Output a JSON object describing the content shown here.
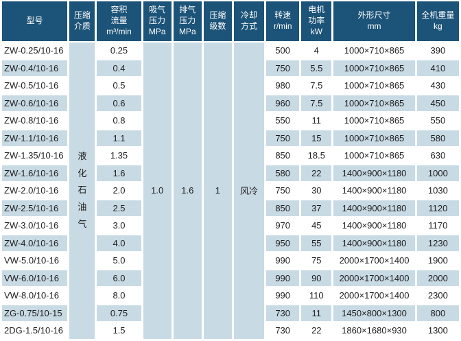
{
  "colors": {
    "header_bg": "#1c5378",
    "header_text": "#ffffff",
    "stripe_bg": "#c8dae4",
    "row_bg": "#ffffff",
    "body_text": "#1d1d1d"
  },
  "table": {
    "headers": [
      {
        "key": "model",
        "label": "型号"
      },
      {
        "key": "medium",
        "label": "压缩\n介质"
      },
      {
        "key": "flow",
        "label": "容积\n流量\nm³/min"
      },
      {
        "key": "suction_pressure",
        "label": "吸气\n压力\nMPa"
      },
      {
        "key": "discharge_pressure",
        "label": "排气\n压力\nMPa"
      },
      {
        "key": "stages",
        "label": "压缩\n级数"
      },
      {
        "key": "cooling",
        "label": "冷却\n方式"
      },
      {
        "key": "speed",
        "label": "转速\nr/min"
      },
      {
        "key": "motor_power",
        "label": "电机\n功率\nkW"
      },
      {
        "key": "dimensions",
        "label": "外形尺寸\nmm"
      },
      {
        "key": "weight",
        "label": "全机重量\nkg"
      }
    ],
    "merged_cells": {
      "medium": "液\n化\n石\n油\n气",
      "suction_pressure": "1.0",
      "discharge_pressure": "1.6",
      "stages": "1",
      "cooling": "风冷"
    },
    "rows": [
      {
        "model": "ZW-0.25/10-16",
        "flow": "0.25",
        "speed": "500",
        "power": "4",
        "dimensions": "1000×710×865",
        "weight": "390"
      },
      {
        "model": "ZW-0.4/10-16",
        "flow": "0.4",
        "speed": "750",
        "power": "5.5",
        "dimensions": "1000×710×865",
        "weight": "410"
      },
      {
        "model": "ZW-0.5/10-16",
        "flow": "0.5",
        "speed": "980",
        "power": "7.5",
        "dimensions": "1000×710×865",
        "weight": "430"
      },
      {
        "model": "ZW-0.6/10-16",
        "flow": "0.6",
        "speed": "960",
        "power": "7.5",
        "dimensions": "1000×710×865",
        "weight": "450"
      },
      {
        "model": "ZW-0.8/10-16",
        "flow": "0.8",
        "speed": "550",
        "power": "11",
        "dimensions": "1000×710×865",
        "weight": "550"
      },
      {
        "model": "ZW-1.1/10-16",
        "flow": "1.1",
        "speed": "750",
        "power": "15",
        "dimensions": "1000×710×865",
        "weight": "580"
      },
      {
        "model": "ZW-1.35/10-16",
        "flow": "1.35",
        "speed": "850",
        "power": "18.5",
        "dimensions": "1000×710×865",
        "weight": "630"
      },
      {
        "model": "ZW-1.6/10-16",
        "flow": "1.6",
        "speed": "580",
        "power": "22",
        "dimensions": "1400×900×1180",
        "weight": "1000"
      },
      {
        "model": "ZW-2.0/10-16",
        "flow": "2.0",
        "speed": "750",
        "power": "30",
        "dimensions": "1400×900×1180",
        "weight": "1030"
      },
      {
        "model": "ZW-2.5/10-16",
        "flow": "2.5",
        "speed": "850",
        "power": "37",
        "dimensions": "1400×900×1180",
        "weight": "1120"
      },
      {
        "model": "ZW-3.0/10-16",
        "flow": "3.0",
        "speed": "970",
        "power": "45",
        "dimensions": "1400×900×1180",
        "weight": "1170"
      },
      {
        "model": "ZW-4.0/10-16",
        "flow": "4.0",
        "speed": "950",
        "power": "55",
        "dimensions": "1400×900×1180",
        "weight": "1230"
      },
      {
        "model": "VW-5.0/10-16",
        "flow": "5.0",
        "speed": "990",
        "power": "75",
        "dimensions": "2000×1700×1400",
        "weight": "1900"
      },
      {
        "model": "VW-6.0/10-16",
        "flow": "6.0",
        "speed": "990",
        "power": "90",
        "dimensions": "2000×1700×1400",
        "weight": "2000"
      },
      {
        "model": "VW-8.0/10-16",
        "flow": "8.0",
        "speed": "990",
        "power": "110",
        "dimensions": "2000×1700×1400",
        "weight": "2300"
      },
      {
        "model": "ZG-0.75/10-15",
        "flow": "0.75",
        "speed": "730",
        "power": "11",
        "dimensions": "1450×800×1300",
        "weight": "800"
      },
      {
        "model": "2DG-1.5/10-16",
        "flow": "1.5",
        "speed": "730",
        "power": "22",
        "dimensions": "1860×1680×930",
        "weight": "1300"
      }
    ]
  }
}
